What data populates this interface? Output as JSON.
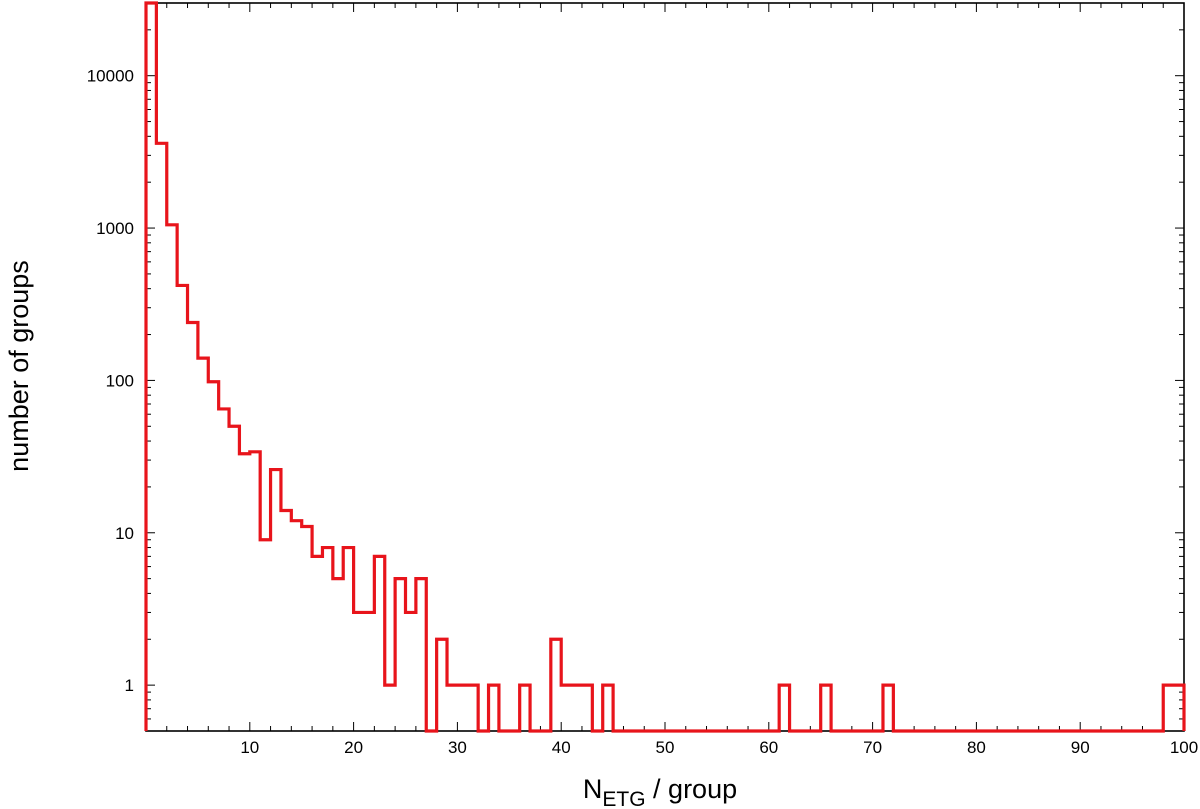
{
  "chart_data": {
    "type": "histogram",
    "x_axis": {
      "label_main": "N",
      "label_sub": "ETG",
      "label_rest": " / group",
      "range": [
        0,
        100
      ],
      "ticks": [
        10,
        20,
        30,
        40,
        50,
        60,
        70,
        80,
        90,
        100
      ],
      "tick_labels": [
        "10",
        "20",
        "30",
        "40",
        "50",
        "60",
        "70",
        "80",
        "90",
        "100"
      ]
    },
    "y_axis": {
      "label": "number of groups",
      "scale": "log",
      "range": [
        0.5,
        30000
      ],
      "ticks": [
        1,
        10,
        100,
        1000,
        10000
      ],
      "tick_labels": [
        "1",
        "10",
        "100",
        "1000",
        "10000"
      ]
    },
    "grid": false,
    "legend": "none",
    "series": [
      {
        "color": "#e8141b",
        "bin_width": 1,
        "bin_start": 0,
        "counts": [
          30000,
          3600,
          1050,
          420,
          240,
          140,
          98,
          65,
          50,
          33,
          34,
          9,
          26,
          14,
          12,
          11,
          7,
          8,
          5,
          8,
          3,
          3,
          7,
          1,
          5,
          3,
          5,
          0.5,
          2,
          1,
          1,
          1,
          0.5,
          1,
          0.5,
          0.5,
          1,
          0.5,
          0.5,
          2,
          1,
          1,
          1,
          0.5,
          1,
          0.5,
          0.5,
          0.5,
          0.5,
          0.5,
          0.5,
          0.5,
          0.5,
          0.5,
          0.5,
          0.5,
          0.5,
          0.5,
          0.5,
          0.5,
          0.5,
          1,
          0.5,
          0.5,
          0.5,
          1,
          0.5,
          0.5,
          0.5,
          0.5,
          0.5,
          1,
          0.5,
          0.5,
          0.5,
          0.5,
          0.5,
          0.5,
          0.5,
          0.5,
          0.5,
          0.5,
          0.5,
          0.5,
          0.5,
          0.5,
          0.5,
          0.5,
          0.5,
          0.5,
          0.5,
          0.5,
          0.5,
          0.5,
          0.5,
          0.5,
          0.5,
          0.5,
          1,
          1
        ]
      }
    ]
  }
}
